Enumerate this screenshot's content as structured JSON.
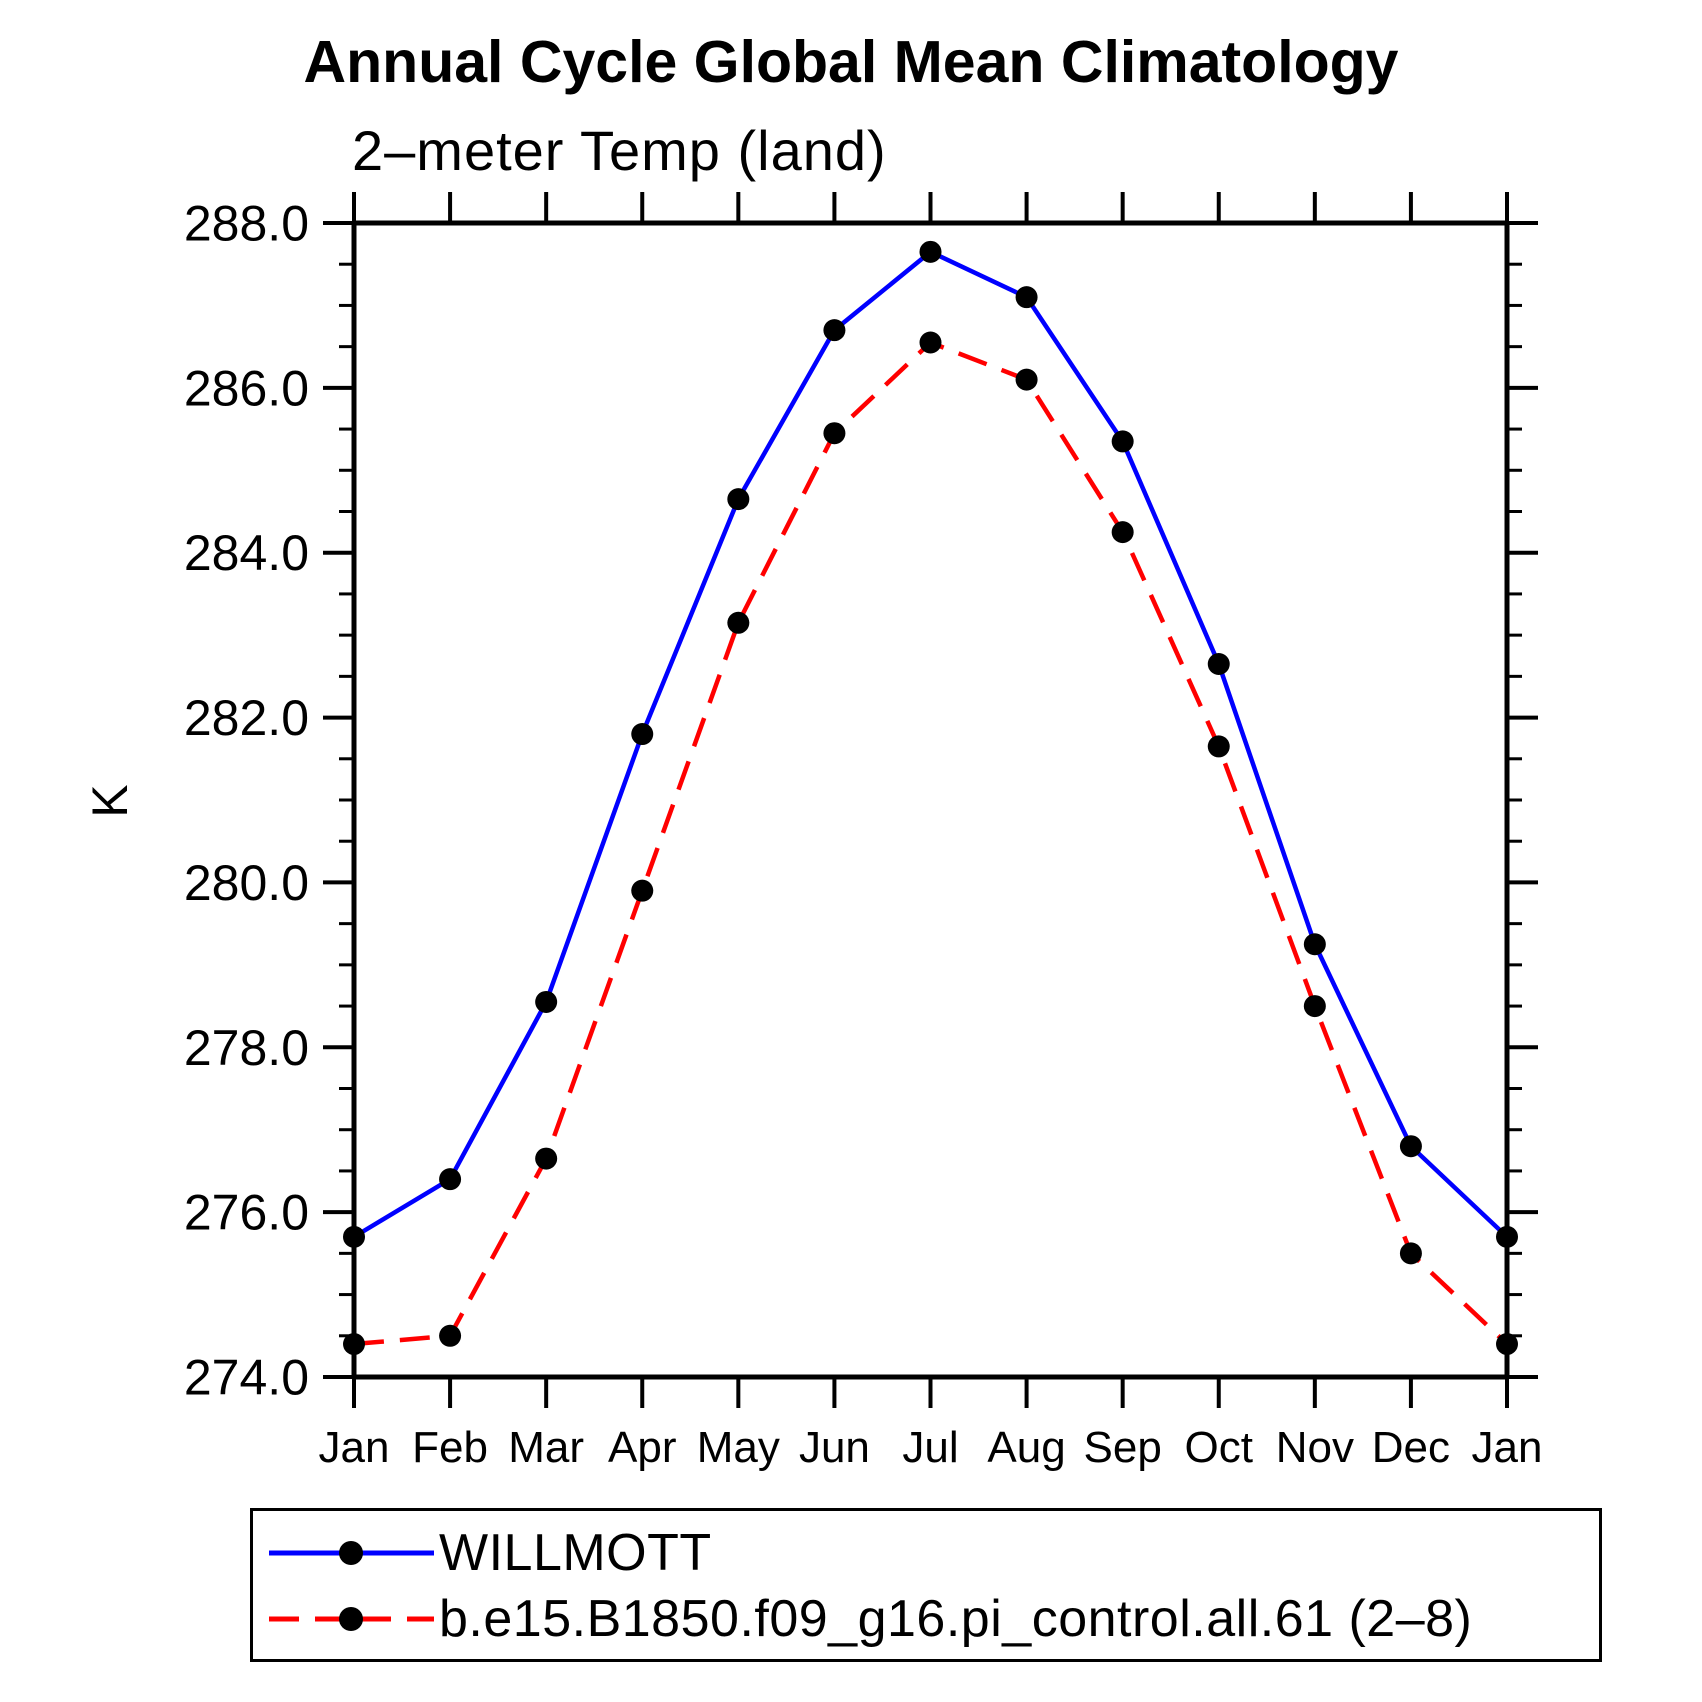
{
  "chart_data": {
    "type": "line",
    "title": "Annual Cycle Global Mean Climatology",
    "subtitle": "2–meter Temp (land)",
    "ylabel": "K",
    "categories": [
      "Jan",
      "Feb",
      "Mar",
      "Apr",
      "May",
      "Jun",
      "Jul",
      "Aug",
      "Sep",
      "Oct",
      "Nov",
      "Dec",
      "Jan"
    ],
    "ylim": [
      274.0,
      288.0
    ],
    "ytick_labels": [
      "274.0",
      "276.0",
      "278.0",
      "280.0",
      "282.0",
      "284.0",
      "286.0",
      "288.0"
    ],
    "ytick_major_step": 2.0,
    "ytick_minor_step": 0.5,
    "grid": "off",
    "legend_position": "bottom-left",
    "axis_color": "#000000",
    "background_color": "#ffffff",
    "marker": "filled-circle",
    "marker_color": "#000000",
    "series": [
      {
        "name": "WILLMOTT",
        "color": "#0000ff",
        "line_style": "solid",
        "values": [
          275.7,
          276.4,
          278.55,
          281.8,
          284.65,
          286.7,
          287.65,
          287.1,
          285.35,
          282.65,
          279.25,
          276.8,
          275.7
        ]
      },
      {
        "name": "b.e15.B1850.f09_g16.pi_control.all.61 (2–8)",
        "color": "#ff0000",
        "line_style": "dashed",
        "values": [
          274.4,
          274.5,
          276.65,
          279.9,
          283.15,
          285.45,
          286.55,
          286.1,
          284.25,
          281.65,
          278.5,
          275.5,
          274.4
        ]
      }
    ]
  }
}
